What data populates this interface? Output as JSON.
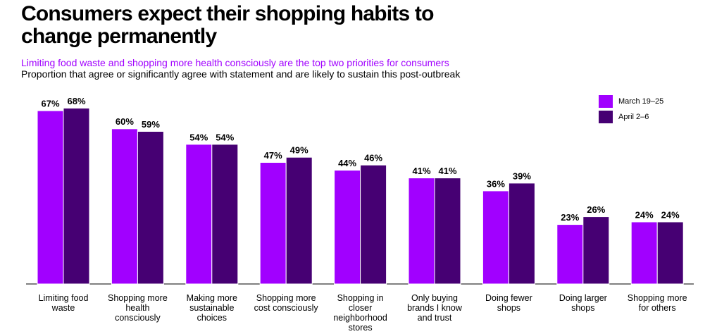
{
  "chart_data": {
    "type": "bar",
    "title": [
      "Consumers expect their shopping habits to",
      "change permanently"
    ],
    "subtitle": "Limiting food waste and shopping more health consciously are the top two priorities for consumers",
    "description": "Proportion that agree or significantly agree with statement and are likely to sustain this post-outbreak",
    "categories": [
      "Limiting food waste",
      "Shopping more health consciously",
      "Making more sustainable choices",
      "Shopping more cost consciously",
      "Shopping in closer neighborhood stores",
      "Only buying brands I know and trust",
      "Doing fewer shops",
      "Doing larger shops",
      "Shopping more for others"
    ],
    "series": [
      {
        "name": "March 19–25",
        "color": "#a100ff",
        "values": [
          67,
          60,
          54,
          47,
          44,
          41,
          36,
          23,
          24
        ],
        "value_labels": [
          "67%",
          "60%",
          "54%",
          "47%",
          "44%",
          "41%",
          "36%",
          "23%",
          "24%"
        ]
      },
      {
        "name": "April 2–6",
        "color": "#460073",
        "values": [
          68,
          59,
          54,
          49,
          46,
          41,
          39,
          26,
          24
        ],
        "value_labels": [
          "68%",
          "59%",
          "54%",
          "49%",
          "46%",
          "41%",
          "39%",
          "26%",
          "24%"
        ]
      }
    ],
    "legend": "top-right"
  }
}
